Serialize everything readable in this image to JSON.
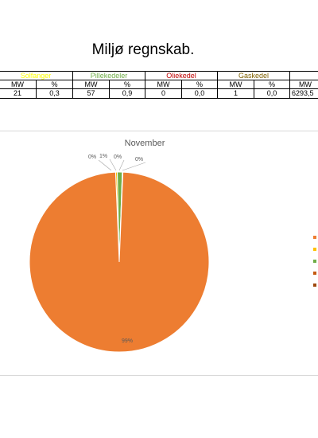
{
  "page_title": "Miljø regnskab.",
  "table": {
    "groups": [
      {
        "label": "Solfanger",
        "color": "#ffff00"
      },
      {
        "label": "Pillekedeler",
        "color": "#70ad47"
      },
      {
        "label": "Oliekedel",
        "color": "#c00000"
      },
      {
        "label": "Gaskedel",
        "color": "#7f6000"
      },
      {
        "label": "",
        "color": "#000000"
      }
    ],
    "header_row": [
      "MW",
      "%",
      "MW",
      "%",
      "MW",
      "%",
      "MW",
      "%",
      "MW"
    ],
    "value_row": [
      "21",
      "0,3",
      "57",
      "0,9",
      "0",
      "0,0",
      "1",
      "0,0",
      "6293,5"
    ]
  },
  "chart_data": {
    "type": "pie",
    "title": "November",
    "slices": [
      {
        "value": 99,
        "label": "99%",
        "color": "#ed7d31"
      },
      {
        "value": 0.3,
        "label": "0%",
        "color": "#ffc000"
      },
      {
        "value": 0.9,
        "label": "1%",
        "color": "#70ad47"
      },
      {
        "value": 0.05,
        "label": "0%",
        "color": "#c55a11"
      },
      {
        "value": 0.05,
        "label": "0%",
        "color": "#9e480e"
      }
    ],
    "legend_position": "right",
    "legend_colors": [
      "#ed7d31",
      "#ffc000",
      "#70ad47",
      "#c55a11",
      "#9e480e"
    ]
  }
}
